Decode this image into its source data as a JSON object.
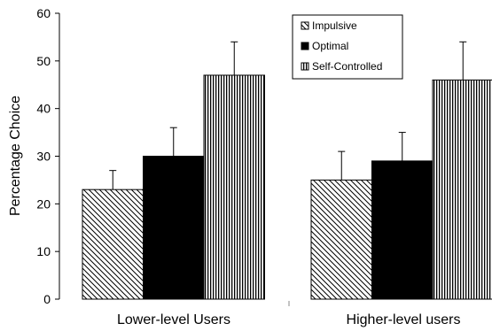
{
  "chart_data": {
    "type": "bar",
    "categories": [
      "Lower-level Users",
      "Higher-level users"
    ],
    "series": [
      {
        "name": "Impulsive",
        "values": [
          23,
          25
        ],
        "error": [
          4,
          6
        ],
        "pattern": "diagonal-hatch"
      },
      {
        "name": "Optimal",
        "values": [
          30,
          29
        ],
        "error": [
          6,
          6
        ],
        "pattern": "solid-black"
      },
      {
        "name": "Self-Controlled",
        "values": [
          47,
          46
        ],
        "error": [
          7,
          8
        ],
        "pattern": "vertical-stripes"
      }
    ],
    "title": "",
    "xlabel": "",
    "ylabel": "Percentage Choice",
    "ylim": [
      0,
      60
    ],
    "yticks": [
      "0",
      "10",
      "20",
      "30",
      "40",
      "50",
      "60"
    ],
    "grid": false,
    "legend_position": "top-right"
  }
}
